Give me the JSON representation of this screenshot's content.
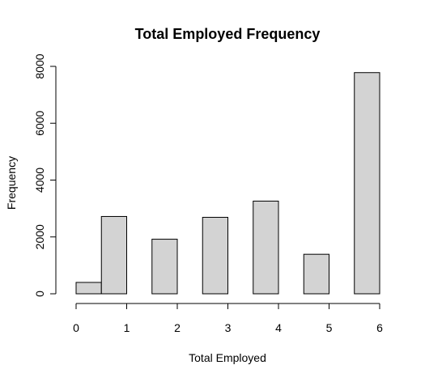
{
  "chart_data": {
    "type": "bar",
    "title": "Total Employed Frequency",
    "xlabel": "Total Employed",
    "ylabel": "Frequency",
    "xlim": [
      0,
      6
    ],
    "ylim": [
      0,
      8000
    ],
    "x_ticks": [
      "0",
      "1",
      "2",
      "3",
      "4",
      "5",
      "6"
    ],
    "y_ticks": [
      "0",
      "2000",
      "4000",
      "6000",
      "8000"
    ],
    "bin_ranges": [
      [
        0,
        0.5
      ],
      [
        0.5,
        1
      ],
      [
        1.5,
        2
      ],
      [
        2.5,
        3
      ],
      [
        3.5,
        4
      ],
      [
        4.5,
        5
      ],
      [
        5.5,
        6
      ]
    ],
    "values": [
      400,
      2720,
      1920,
      2690,
      3260,
      1390,
      7780
    ],
    "bar_fill": "#d3d3d3",
    "bar_stroke": "#000000",
    "grid": false
  }
}
